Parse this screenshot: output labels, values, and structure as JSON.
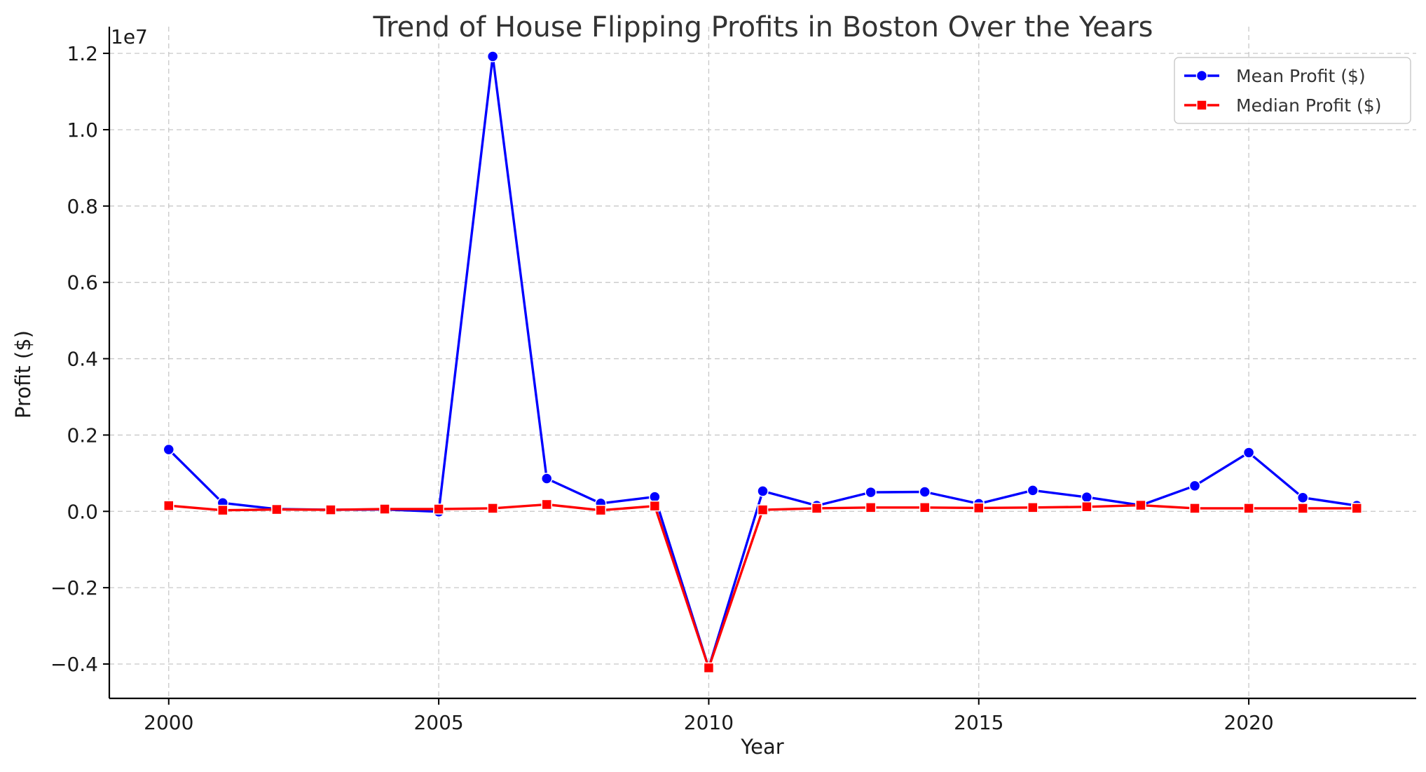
{
  "chart_data": {
    "type": "line",
    "title": "Trend of House Flipping Profits in Boston Over the Years",
    "xlabel": "Year",
    "ylabel": "Profit ($)",
    "y_offset_label": "1e7",
    "xlim": [
      1998.9,
      2023.1
    ],
    "ylim": [
      -4.9,
      12.7
    ],
    "y_scale_factor": 10000000,
    "x_ticks": [
      2000,
      2005,
      2010,
      2015,
      2020
    ],
    "x_tick_labels": [
      "2000",
      "2005",
      "2010",
      "2015",
      "2020"
    ],
    "y_ticks": [
      -0.4,
      -0.2,
      0.0,
      0.2,
      0.4,
      0.6,
      0.8,
      1.0,
      1.2
    ],
    "y_tick_labels": [
      "−0.4",
      "−0.2",
      "0.0",
      "0.2",
      "0.4",
      "0.6",
      "0.8",
      "1.0",
      "1.2"
    ],
    "grid": true,
    "legend_position": "top-right",
    "x": [
      2000,
      2001,
      2002,
      2003,
      2004,
      2005,
      2006,
      2007,
      2008,
      2009,
      2010,
      2011,
      2012,
      2013,
      2014,
      2015,
      2016,
      2017,
      2018,
      2019,
      2020,
      2021,
      2022
    ],
    "series": [
      {
        "name": "Mean Profit ($)",
        "color": "#0000ff",
        "marker": "circle",
        "values": [
          1620000,
          220000,
          60000,
          40000,
          50000,
          -10000,
          11920000,
          860000,
          210000,
          380000,
          -4100000,
          530000,
          150000,
          500000,
          510000,
          200000,
          550000,
          370000,
          160000,
          670000,
          1540000,
          360000,
          150000
        ]
      },
      {
        "name": "Median Profit ($)",
        "color": "#ff0000",
        "marker": "square",
        "values": [
          150000,
          30000,
          50000,
          40000,
          60000,
          60000,
          80000,
          180000,
          30000,
          140000,
          -4100000,
          40000,
          80000,
          100000,
          100000,
          90000,
          100000,
          120000,
          160000,
          80000,
          80000,
          80000,
          80000
        ]
      }
    ]
  }
}
